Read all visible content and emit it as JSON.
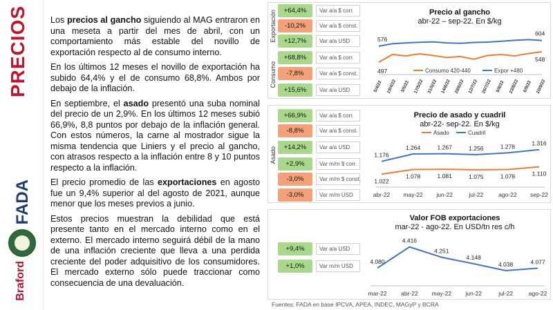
{
  "sidebar": {
    "title": "PRECIOS",
    "fada_logo": "FADA",
    "braford_logo": "Braford",
    "seal_icon": "seal-icon"
  },
  "text": {
    "p1_a": "Los ",
    "p1_b": "precios al gancho",
    "p1_c": " siguiendo al MAG entraron en una meseta a partir del mes de abril, con un comportamiento más estable del novillo de exportación respecto al de consumo interno.",
    "p2": "En los últimos 12 meses el novillo de exportación ha subido 64,4% y el de consumo 68,8%. Ambos por debajo de la inflación.",
    "p3_a": "En septiembre, el ",
    "p3_b": "asado",
    "p3_c": " presentó una suba nominal del precio de un 2,9%. En los últimos 12 meses subió 66,9%, 8,8 puntos por debajo de la inflación general. Con estos números, la carne al mostrador sigue la misma tendencia que Liniers y el precio al gancho, con atrasos respecto a la inflación entre 8 y 10 puntos respecto a la inflación.",
    "p4_a": "El precio promedio de las ",
    "p4_b": "exportaciones",
    "p4_c": " en agosto fue un 9,4% superior al del agosto de 2021, aunque menor que los meses previos a junio.",
    "p5": "Estos precios muestran la debilidad que está presente tanto en el mercado interno como en el externo. El mercado interno seguirá débil de la mano de una inflación creciente que lleva a una perdida creciente del poder adquisitivo de los consumidores. El mercado externo sólo puede traccionar como consecuencia de una devaluación."
  },
  "panel1": {
    "caption_top": "Exportación",
    "caption_bottom": "Consumo",
    "rows": [
      {
        "value": "+64,4%",
        "label": "Var a/a $ corr.",
        "tone": "pos"
      },
      {
        "value": "-10,2%",
        "label": "Var a/a $ const.",
        "tone": "neg"
      },
      {
        "value": "+12,7%",
        "label": "Var a/a USD",
        "tone": "pos"
      },
      {
        "value": "+68,8%",
        "label": "Var a/a $ corr.",
        "tone": "pos"
      },
      {
        "value": "-7,8%",
        "label": "Var a/a $ const.",
        "tone": "neg"
      },
      {
        "value": "+15,6%",
        "label": "Var a/a USD",
        "tone": "pos"
      }
    ]
  },
  "panel2": {
    "caption": "Asado",
    "rows": [
      {
        "value": "+66,9%",
        "label": "Var a/a $ corr.",
        "tone": "pos"
      },
      {
        "value": "-8,8%",
        "label": "Var a/a $ const.",
        "tone": "neg"
      },
      {
        "value": "+14,2%",
        "label": "Var a/a USD",
        "tone": "pos"
      },
      {
        "value": "+2,9%",
        "label": "Var m/m $ corr.",
        "tone": "pos"
      },
      {
        "value": "-3,0%",
        "label": "Var m/m $ const.",
        "tone": "neg"
      },
      {
        "value": "-3,0%",
        "label": "Var m/m USD",
        "tone": "neg"
      }
    ]
  },
  "panel3": {
    "rows": [
      {
        "value": "+9,4%",
        "label": "Var a/a USD",
        "tone": "pos"
      },
      {
        "value": "+1,0%",
        "label": "Var m/m USD",
        "tone": "pos"
      }
    ]
  },
  "chart_titles": {
    "c1_title": "Precio al gancho",
    "c1_sub": "abr-22 – sep-22. En $/kg",
    "c2_title": "Precio de asado y cuadril",
    "c2_sub": "abr-22- sep-22. En $/kg",
    "c3_title": "Valor FOB exportaciones",
    "c3_sub": "mar-22 - ago-22. En USD/tn res c/h"
  },
  "source": "Fuentes: FADA en base IPCVA, APEA, INDEC, MAGyP y BCRA",
  "colors": {
    "brand_red": "#c0152f",
    "orange": "#ed7d31",
    "blue": "#4472c4",
    "pos_badge": "#a9d88d",
    "neg_badge": "#f4a17a"
  },
  "chart_data": [
    {
      "type": "line",
      "title": "Precio al gancho",
      "subtitle": "abr-22 – sep-22. En $/kg",
      "x": [
        "5/4/22",
        "19/4/22",
        "3/5/22",
        "17/5/22",
        "31/5/22",
        "14/6/22",
        "28/6/22",
        "12/7/22",
        "26/7/22",
        "9/8/22",
        "23/8/22",
        "6/9/22",
        "20/9/22"
      ],
      "series": [
        {
          "name": "Consumo 420-440",
          "color": "#ed7d31",
          "values": [
            497,
            535,
            528,
            538,
            530,
            520,
            525,
            512,
            530,
            535,
            528,
            540,
            548
          ]
        },
        {
          "name": "Expor +480",
          "color": "#4472c4",
          "values": [
            576,
            588,
            592,
            595,
            597,
            592,
            590,
            594,
            596,
            600,
            605,
            608,
            604
          ]
        }
      ],
      "data_labels": {
        "Consumo 420-440": {
          "first": "497",
          "last": "548"
        },
        "Expor +480": {
          "first": "576",
          "last": "604"
        }
      },
      "ylim": [
        450,
        640
      ],
      "legend": "bottom"
    },
    {
      "type": "line",
      "title": "Precio de asado y cuadril",
      "subtitle": "abr-22- sep-22. En $/kg",
      "categories": [
        "abr-22",
        "may-22",
        "jun-22",
        "jul-22",
        "ago-22",
        "sep-22"
      ],
      "series": [
        {
          "name": "Asado",
          "color": "#ed7d31",
          "values": [
            1022,
            1078,
            1081,
            1075,
            1078,
            1110
          ],
          "labels": [
            "1.022",
            "1.078",
            "1.081",
            "1.075",
            "1.078",
            "1.110"
          ]
        },
        {
          "name": "Cuadril",
          "color": "#4472c4",
          "values": [
            1176,
            1264,
            1267,
            1256,
            1278,
            1316
          ],
          "labels": [
            "1.176",
            "1.264",
            "1.267",
            "1.256",
            "1.278",
            "1.316"
          ]
        }
      ],
      "ylim": [
        950,
        1380
      ],
      "legend": "top"
    },
    {
      "type": "line",
      "title": "Valor FOB exportaciones",
      "subtitle": "mar-22 - ago-22. En USD/tn res c/h",
      "categories": [
        "mar-22",
        "abr-22",
        "may-22",
        "jun-22",
        "jul-22",
        "ago-22"
      ],
      "series": [
        {
          "color": "#4472c4",
          "values": [
            4080,
            4416,
            4251,
            4148,
            4038,
            4077
          ],
          "labels": [
            "4.080",
            "4.416",
            "4.251",
            "4.148",
            "4.038",
            "4.077"
          ]
        }
      ],
      "ylim": [
        3950,
        4500
      ]
    }
  ]
}
